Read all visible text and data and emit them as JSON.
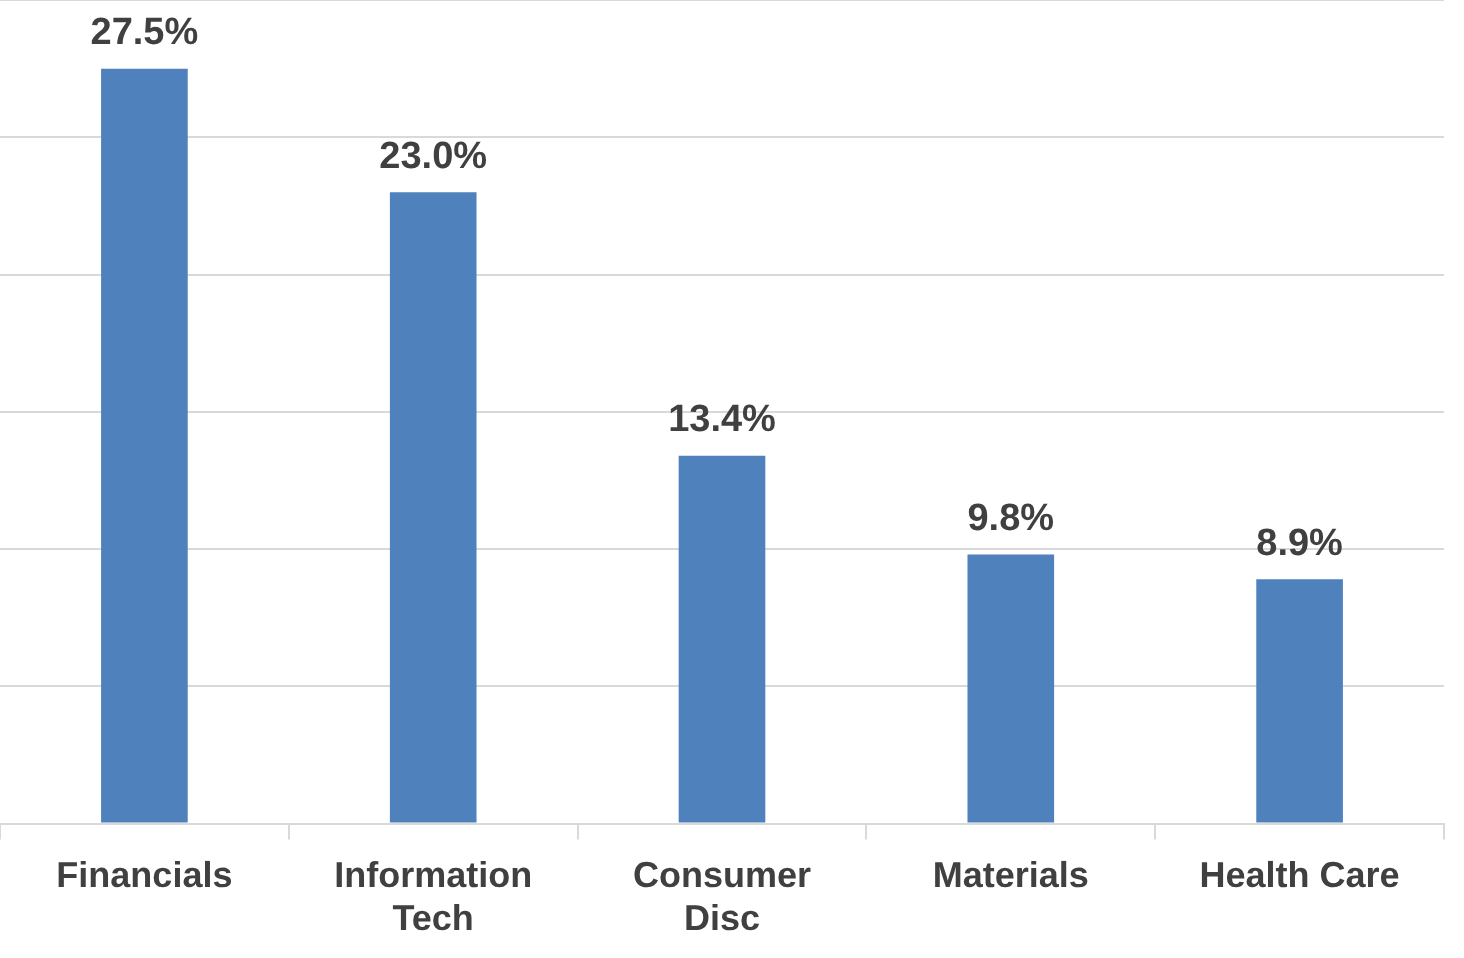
{
  "chart_data": {
    "type": "bar",
    "categories": [
      "Financials",
      "Information Tech",
      "Consumer Disc",
      "Materials",
      "Health Care"
    ],
    "values": [
      27.5,
      23.0,
      13.4,
      9.8,
      8.9
    ],
    "value_labels": [
      "27.5%",
      "23.0%",
      "13.4%",
      "9.8%",
      "8.9%"
    ],
    "color": "#4f81bd",
    "ylim": [
      0,
      30
    ],
    "yticks": [
      {
        "value": 0,
        "label": null
      },
      {
        "value": 5,
        "label": null
      },
      {
        "value": 10,
        "label": null
      },
      {
        "value": 15,
        "label": null
      },
      {
        "value": 20,
        "label": null
      },
      {
        "value": 25,
        "label": null
      },
      {
        "value": 30,
        "label": null
      }
    ],
    "grid": "y",
    "tick_labels": "x",
    "legend": false
  }
}
